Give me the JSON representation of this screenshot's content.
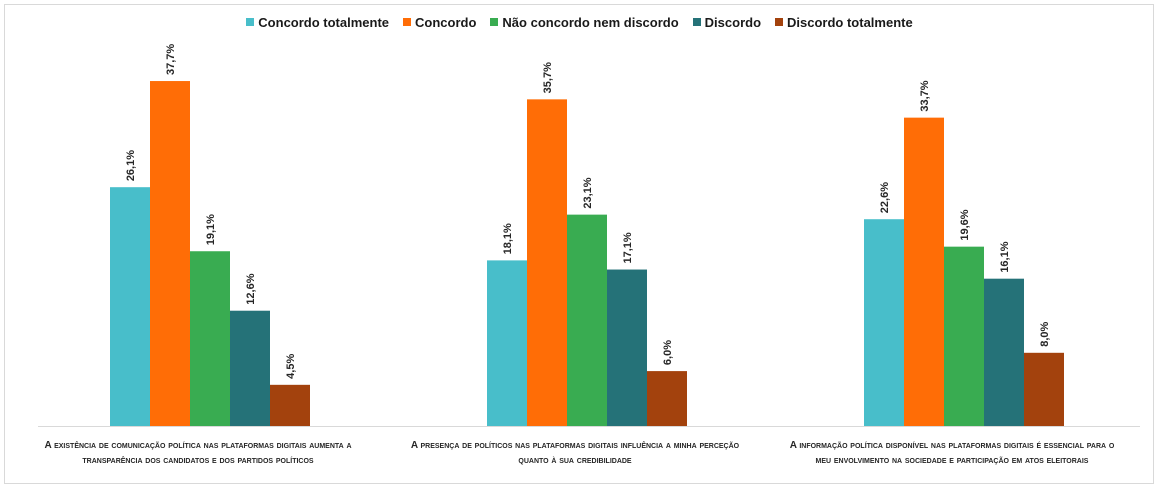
{
  "colors": {
    "concordo_totalmente": "#48BECA",
    "concordo": "#FF6D06",
    "neutro": "#39AC51",
    "discordo": "#257278",
    "discordo_totalmente": "#A3420D"
  },
  "chart_data": {
    "type": "bar",
    "categories": [
      "A existência de comunicação política nas plataformas digitais aumenta a transparência dos candidatos e dos partidos políticos",
      "A presença de políticos nas plataformas digitais influência a minha perceção quanto à sua credibilidade",
      "A informação política disponível nas plataformas digitais é essencial para o meu envolvimento na sociedade e participação em atos eleitorais"
    ],
    "series": [
      {
        "name": "Concordo totalmente",
        "values": [
          26.1,
          18.1,
          22.6
        ],
        "labels": [
          "26,1%",
          "18,1%",
          "22,6%"
        ]
      },
      {
        "name": "Concordo",
        "values": [
          37.7,
          35.7,
          33.7
        ],
        "labels": [
          "37,7%",
          "35,7%",
          "33,7%"
        ]
      },
      {
        "name": "Não concordo nem discordo",
        "values": [
          19.1,
          23.1,
          19.6
        ],
        "labels": [
          "19,1%",
          "23,1%",
          "19,6%"
        ]
      },
      {
        "name": "Discordo",
        "values": [
          12.6,
          17.1,
          16.1
        ],
        "labels": [
          "12,6%",
          "17,1%",
          "16,1%"
        ]
      },
      {
        "name": "Discordo totalmente",
        "values": [
          4.5,
          6.0,
          8.0
        ],
        "labels": [
          "4,5%",
          "6,0%",
          "8,0%"
        ]
      }
    ],
    "ylim": [
      0,
      40
    ],
    "grid": false,
    "legend_position": "top",
    "series_colors": [
      "#48BECA",
      "#FF6D06",
      "#39AC51",
      "#257278",
      "#A3420D"
    ]
  }
}
